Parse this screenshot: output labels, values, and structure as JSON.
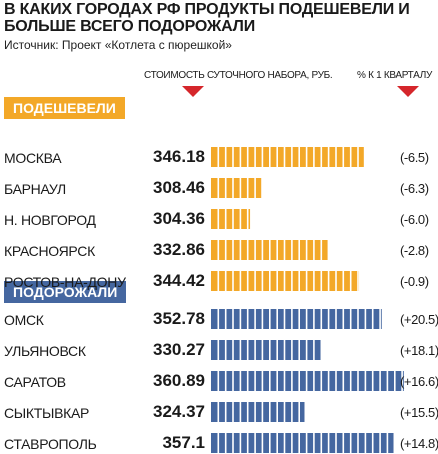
{
  "title": "В каких городах РФ продукты подешевели и больше всего подорожали",
  "source": "Источник: Проект «Котлета с пюрешкой»",
  "column_headers": {
    "cost": "Стоимость суточного набора, руб.",
    "change": "% к 1 кварталу"
  },
  "colors": {
    "cheaper": "#f3a828",
    "dearer": "#4567a0",
    "marker": "#d5262b"
  },
  "chart_data": {
    "type": "bar",
    "groups": [
      {
        "name": "Подешевели",
        "color": "#f3a828",
        "items": [
          {
            "city": "Москва",
            "value": "346.18",
            "change": "(-6.5)"
          },
          {
            "city": "Барнаул",
            "value": "308.46",
            "change": "(-6.3)"
          },
          {
            "city": "Н. Новгород",
            "value": "304.36",
            "change": "(-6.0)"
          },
          {
            "city": "Красноярск",
            "value": "332.86",
            "change": "(-2.8)"
          },
          {
            "city": "Ростов-на-Дону",
            "value": "344.42",
            "change": "(-0.9)"
          }
        ]
      },
      {
        "name": "Подорожали",
        "color": "#4567a0",
        "items": [
          {
            "city": "Омск",
            "value": "352.78",
            "change": "(+20.5)"
          },
          {
            "city": "Ульяновск",
            "value": "330.27",
            "change": "(+18.1)"
          },
          {
            "city": "Саратов",
            "value": "360.89",
            "change": "(+16.6)"
          },
          {
            "city": "Сыктывкар",
            "value": "324.37",
            "change": "(+15.5)"
          },
          {
            "city": "Ставрополь",
            "value": "357.1",
            "change": "(+14.8)"
          }
        ]
      }
    ]
  }
}
